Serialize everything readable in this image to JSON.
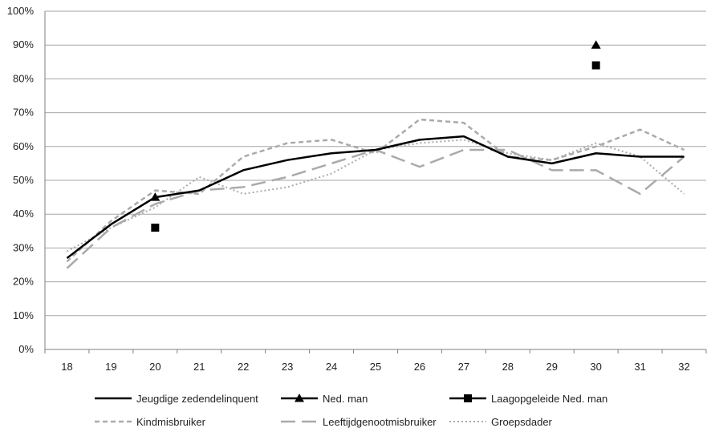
{
  "chart_data": {
    "type": "line",
    "title": "",
    "xlabel": "",
    "ylabel": "",
    "categories": [
      "18",
      "19",
      "20",
      "21",
      "22",
      "23",
      "24",
      "25",
      "26",
      "27",
      "28",
      "29",
      "30",
      "31",
      "32"
    ],
    "ylim": [
      0,
      100
    ],
    "y_ticks": [
      "0%",
      "10%",
      "20%",
      "30%",
      "40%",
      "50%",
      "60%",
      "70%",
      "80%",
      "90%",
      "100%"
    ],
    "grid": "horizontal",
    "legend_position": "bottom",
    "series": [
      {
        "name": "Jeugdige zedendelinquent",
        "style": "solid",
        "color": "#000000",
        "values": [
          27,
          37,
          45,
          47,
          53,
          56,
          58,
          59,
          62,
          63,
          57,
          55,
          58,
          57,
          57
        ]
      },
      {
        "name": "Ned. man",
        "style": "marker-triangle",
        "color": "#000000",
        "values": [
          null,
          null,
          45,
          null,
          null,
          null,
          null,
          null,
          null,
          null,
          null,
          null,
          90,
          null,
          null
        ]
      },
      {
        "name": "Laagopgeleide Ned. man",
        "style": "marker-square",
        "color": "#000000",
        "values": [
          null,
          null,
          36,
          null,
          null,
          null,
          null,
          null,
          null,
          null,
          null,
          null,
          84,
          null,
          null
        ]
      },
      {
        "name": "Kindmisbruiker",
        "style": "short-dash",
        "color": "#aaaaaa",
        "values": [
          26,
          38,
          47,
          46,
          57,
          61,
          62,
          58,
          68,
          67,
          57,
          56,
          60,
          65,
          59
        ]
      },
      {
        "name": "Leeftijdgenootmisbruiker",
        "style": "long-dash",
        "color": "#aaaaaa",
        "values": [
          24,
          36,
          43,
          47,
          48,
          51,
          55,
          59,
          54,
          59,
          59,
          53,
          53,
          46,
          57
        ]
      },
      {
        "name": "Groepsdader",
        "style": "dotted",
        "color": "#aaaaaa",
        "values": [
          29,
          36,
          42,
          51,
          46,
          48,
          52,
          59,
          61,
          62,
          58,
          56,
          61,
          57,
          46
        ]
      }
    ]
  }
}
